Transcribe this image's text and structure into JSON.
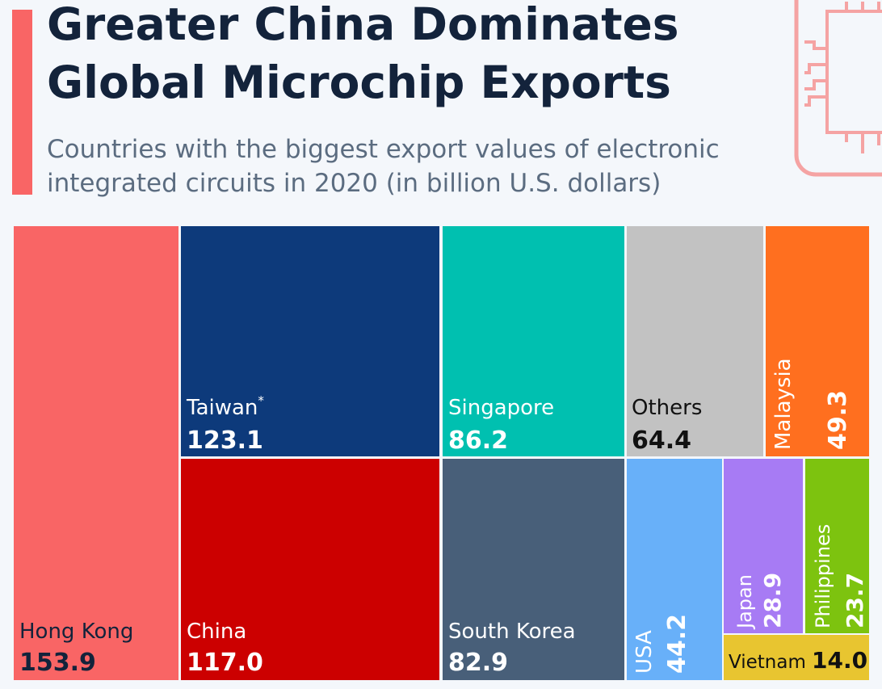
{
  "header": {
    "title_line1": "Greater China Dominates",
    "title_line2": "Global Microchip Exports",
    "subtitle_line1": "Countries with the biggest export values of electronic",
    "subtitle_line2": "integrated circuits in 2020 (in billion U.S. dollars)"
  },
  "icons": {
    "chip": "microchip-icon"
  },
  "colors": {
    "accent": "#f96565",
    "title": "#13233b",
    "subtitle": "#5b6c80"
  },
  "chart_data": {
    "type": "treemap",
    "title": "Greater China Dominates Global Microchip Exports",
    "subtitle": "Countries with the biggest export values of electronic integrated circuits in 2020 (in billion U.S. dollars)",
    "items": [
      {
        "label": "Hong Kong",
        "value": 153.9,
        "display": "153.9",
        "color": "#f96565",
        "text": "#13233b"
      },
      {
        "label": "Taiwan",
        "value": 123.1,
        "display": "123.1",
        "footnote_mark": "*",
        "color": "#0d3a7b",
        "text": "#ffffff"
      },
      {
        "label": "China",
        "value": 117.0,
        "display": "117.0",
        "color": "#cc0000",
        "text": "#ffffff"
      },
      {
        "label": "Singapore",
        "value": 86.2,
        "display": "86.2",
        "color": "#00c0b0",
        "text": "#ffffff"
      },
      {
        "label": "South Korea",
        "value": 82.9,
        "display": "82.9",
        "color": "#485f79",
        "text": "#ffffff"
      },
      {
        "label": "Others",
        "value": 64.4,
        "display": "64.4",
        "color": "#c2c2c2",
        "text": "#111111"
      },
      {
        "label": "Malaysia",
        "value": 49.3,
        "display": "49.3",
        "color": "#ff6f1f",
        "text": "#ffffff"
      },
      {
        "label": "USA",
        "value": 44.2,
        "display": "44.2",
        "color": "#68b0f9",
        "text": "#ffffff"
      },
      {
        "label": "Japan",
        "value": 28.9,
        "display": "28.9",
        "color": "#a77bf4",
        "text": "#ffffff"
      },
      {
        "label": "Philippines",
        "value": 23.7,
        "display": "23.7",
        "color": "#7dc30f",
        "text": "#ffffff"
      },
      {
        "label": "Vietnam",
        "value": 14.0,
        "display": "14.0",
        "color": "#e8c530",
        "text": "#111111"
      }
    ]
  }
}
